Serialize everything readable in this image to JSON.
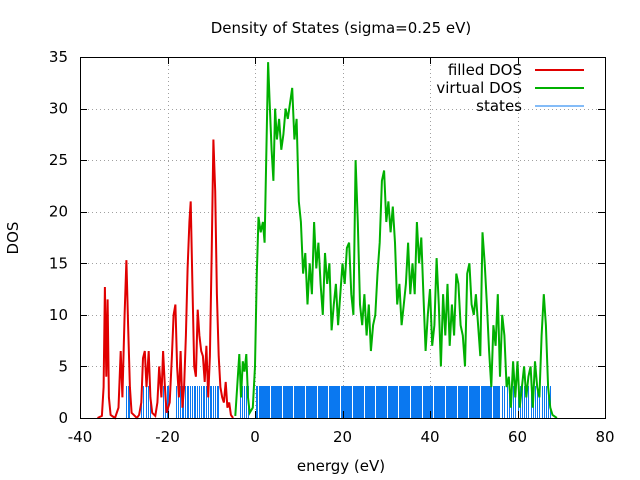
{
  "chart_data": {
    "type": "line",
    "title": "Density of States (sigma=0.25 eV)",
    "xlabel": "energy (eV)",
    "ylabel": "DOS",
    "xlim": [
      -40,
      80
    ],
    "ylim": [
      0,
      35
    ],
    "xticks": [
      -40,
      -20,
      0,
      20,
      40,
      60,
      80
    ],
    "yticks": [
      0,
      5,
      10,
      15,
      20,
      25,
      30,
      35
    ],
    "grid": true,
    "legend_position": "top-right",
    "series": [
      {
        "name": "filled DOS",
        "color": "#e00000",
        "style": "line",
        "points": [
          [
            -36,
            0
          ],
          [
            -35,
            0.2
          ],
          [
            -34.6,
            3
          ],
          [
            -34.3,
            12.7
          ],
          [
            -34.0,
            4
          ],
          [
            -33.7,
            11.5
          ],
          [
            -33.4,
            2
          ],
          [
            -33.0,
            0.3
          ],
          [
            -32,
            0
          ],
          [
            -31.2,
            1
          ],
          [
            -30.7,
            6.5
          ],
          [
            -30.3,
            2
          ],
          [
            -29.8,
            10
          ],
          [
            -29.4,
            15.3
          ],
          [
            -29.0,
            9
          ],
          [
            -28.6,
            3
          ],
          [
            -28.2,
            0.5
          ],
          [
            -27,
            0
          ],
          [
            -26.5,
            0.3
          ],
          [
            -26.0,
            1.5
          ],
          [
            -25.6,
            5.8
          ],
          [
            -25.2,
            6.5
          ],
          [
            -24.8,
            3
          ],
          [
            -24.3,
            6.5
          ],
          [
            -23.9,
            2
          ],
          [
            -23.5,
            0.5
          ],
          [
            -22.8,
            0.2
          ],
          [
            -22.3,
            1.5
          ],
          [
            -21.9,
            5
          ],
          [
            -21.4,
            2
          ],
          [
            -21.0,
            6.5
          ],
          [
            -20.6,
            3
          ],
          [
            -20.2,
            0.5
          ],
          [
            -19.5,
            1.5
          ],
          [
            -19.0,
            6
          ],
          [
            -18.6,
            10
          ],
          [
            -18.2,
            11
          ],
          [
            -17.8,
            5
          ],
          [
            -17.4,
            2
          ],
          [
            -17.0,
            6.5
          ],
          [
            -16.6,
            1
          ],
          [
            -16.2,
            3
          ],
          [
            -15.8,
            8
          ],
          [
            -15.4,
            14.5
          ],
          [
            -15.0,
            19
          ],
          [
            -14.7,
            21
          ],
          [
            -14.3,
            13
          ],
          [
            -13.9,
            5
          ],
          [
            -13.5,
            4
          ],
          [
            -13.1,
            10.5
          ],
          [
            -12.7,
            8
          ],
          [
            -12.3,
            6.5
          ],
          [
            -11.9,
            6
          ],
          [
            -11.5,
            3.5
          ],
          [
            -11.1,
            7
          ],
          [
            -10.7,
            2
          ],
          [
            -10.3,
            6
          ],
          [
            -9.9,
            16
          ],
          [
            -9.5,
            27
          ],
          [
            -9.1,
            22
          ],
          [
            -8.7,
            12
          ],
          [
            -8.3,
            6
          ],
          [
            -7.9,
            3
          ],
          [
            -7.5,
            2
          ],
          [
            -7.1,
            1.5
          ],
          [
            -6.7,
            3.5
          ],
          [
            -6.3,
            1
          ],
          [
            -5.9,
            1.5
          ],
          [
            -5.5,
            0.3
          ],
          [
            -5.0,
            0
          ]
        ]
      },
      {
        "name": "virtual DOS",
        "color": "#00b000",
        "style": "line",
        "points": [
          [
            -4.5,
            0.2
          ],
          [
            -4.0,
            3.5
          ],
          [
            -3.6,
            6.2
          ],
          [
            -3.2,
            2
          ],
          [
            -2.8,
            5.5
          ],
          [
            -2.4,
            4.5
          ],
          [
            -2.0,
            6.2
          ],
          [
            -1.6,
            2
          ],
          [
            -1.2,
            0.5
          ],
          [
            -0.5,
            1
          ],
          [
            0,
            5
          ],
          [
            0.4,
            14
          ],
          [
            0.8,
            19.5
          ],
          [
            1.3,
            18
          ],
          [
            1.8,
            19
          ],
          [
            2.2,
            17
          ],
          [
            2.6,
            26
          ],
          [
            3.0,
            34.5
          ],
          [
            3.4,
            30
          ],
          [
            3.8,
            26
          ],
          [
            4.2,
            23
          ],
          [
            4.6,
            30
          ],
          [
            5.0,
            27
          ],
          [
            5.5,
            29
          ],
          [
            6.0,
            26
          ],
          [
            6.5,
            27.5
          ],
          [
            7.0,
            30
          ],
          [
            7.5,
            29
          ],
          [
            8.0,
            30.5
          ],
          [
            8.5,
            32
          ],
          [
            9.0,
            27
          ],
          [
            9.5,
            29
          ],
          [
            10.0,
            21
          ],
          [
            10.5,
            19
          ],
          [
            11.0,
            14
          ],
          [
            11.5,
            16
          ],
          [
            12.0,
            11
          ],
          [
            12.5,
            15
          ],
          [
            13.0,
            12
          ],
          [
            13.5,
            19
          ],
          [
            14.0,
            14.5
          ],
          [
            14.5,
            17
          ],
          [
            15.0,
            13
          ],
          [
            15.5,
            10
          ],
          [
            16.0,
            16
          ],
          [
            16.5,
            13
          ],
          [
            17.0,
            15
          ],
          [
            17.5,
            8.5
          ],
          [
            18.0,
            11
          ],
          [
            18.5,
            13
          ],
          [
            19.0,
            9
          ],
          [
            19.5,
            12
          ],
          [
            20.0,
            15
          ],
          [
            20.5,
            13
          ],
          [
            21.0,
            16.5
          ],
          [
            21.5,
            17
          ],
          [
            22.0,
            12
          ],
          [
            22.5,
            10
          ],
          [
            23.0,
            25
          ],
          [
            23.5,
            19
          ],
          [
            24.0,
            11
          ],
          [
            24.5,
            9
          ],
          [
            25.0,
            12
          ],
          [
            25.5,
            8
          ],
          [
            26.0,
            11
          ],
          [
            26.5,
            6.5
          ],
          [
            27.0,
            9
          ],
          [
            27.5,
            10
          ],
          [
            28.0,
            14
          ],
          [
            28.5,
            17
          ],
          [
            29.0,
            23
          ],
          [
            29.5,
            24
          ],
          [
            30.0,
            19
          ],
          [
            30.5,
            21
          ],
          [
            31.0,
            18
          ],
          [
            31.5,
            20.5
          ],
          [
            32.0,
            17
          ],
          [
            32.5,
            11
          ],
          [
            33.0,
            13
          ],
          [
            33.5,
            9
          ],
          [
            34.0,
            11
          ],
          [
            34.5,
            13
          ],
          [
            35.0,
            17
          ],
          [
            35.5,
            12
          ],
          [
            36.0,
            15
          ],
          [
            36.5,
            12
          ],
          [
            37.0,
            19
          ],
          [
            37.5,
            15
          ],
          [
            38.0,
            17.5
          ],
          [
            38.5,
            12
          ],
          [
            39.0,
            6.5
          ],
          [
            39.5,
            10
          ],
          [
            40.0,
            12.5
          ],
          [
            40.5,
            7
          ],
          [
            41.0,
            9
          ],
          [
            41.5,
            15.5
          ],
          [
            42.0,
            11
          ],
          [
            42.5,
            5
          ],
          [
            43.0,
            12
          ],
          [
            43.5,
            8
          ],
          [
            44.0,
            13
          ],
          [
            44.5,
            7
          ],
          [
            45.0,
            11
          ],
          [
            45.5,
            8
          ],
          [
            46.0,
            14
          ],
          [
            46.5,
            13
          ],
          [
            47.0,
            9
          ],
          [
            47.5,
            8
          ],
          [
            48.0,
            5
          ],
          [
            48.5,
            14
          ],
          [
            49.0,
            15
          ],
          [
            49.5,
            11
          ],
          [
            50.0,
            10
          ],
          [
            50.5,
            12
          ],
          [
            51.0,
            9
          ],
          [
            51.5,
            6
          ],
          [
            52.0,
            18
          ],
          [
            52.5,
            15
          ],
          [
            53.0,
            11
          ],
          [
            53.5,
            6.5
          ],
          [
            54.0,
            3
          ],
          [
            54.5,
            9
          ],
          [
            55.0,
            7
          ],
          [
            55.5,
            12
          ],
          [
            56.0,
            4
          ],
          [
            56.5,
            10
          ],
          [
            57.0,
            8
          ],
          [
            57.5,
            3
          ],
          [
            58.0,
            4
          ],
          [
            58.5,
            1
          ],
          [
            59.0,
            5.5
          ],
          [
            59.5,
            2
          ],
          [
            60.0,
            5.5
          ],
          [
            60.5,
            1
          ],
          [
            61.0,
            3
          ],
          [
            61.5,
            5
          ],
          [
            62.0,
            2
          ],
          [
            62.5,
            4
          ],
          [
            63.0,
            5
          ],
          [
            63.5,
            1
          ],
          [
            64.0,
            5.5
          ],
          [
            64.5,
            3
          ],
          [
            65.0,
            2
          ],
          [
            65.5,
            8
          ],
          [
            66.0,
            12
          ],
          [
            66.5,
            9
          ],
          [
            67.0,
            3
          ],
          [
            67.5,
            1
          ],
          [
            68.0,
            0.3
          ],
          [
            69.0,
            0
          ]
        ]
      },
      {
        "name": "states",
        "color": "#0a78f0",
        "style": "impulses",
        "height": 3.1,
        "bands": [
          {
            "from": -29.5,
            "to": -28.7,
            "density": 0.4
          },
          {
            "from": -26.0,
            "to": -24.0,
            "density": 0.5
          },
          {
            "from": -21.0,
            "to": -19.5,
            "density": 0.4
          },
          {
            "from": -18.0,
            "to": -8.3,
            "density": 0.4
          },
          {
            "from": -3.5,
            "to": -1.5,
            "density": 0.5
          },
          {
            "from": 0.3,
            "to": 56.0,
            "density": 0.25
          },
          {
            "from": 56.5,
            "to": 67.5,
            "density": 0.5
          }
        ]
      }
    ]
  }
}
